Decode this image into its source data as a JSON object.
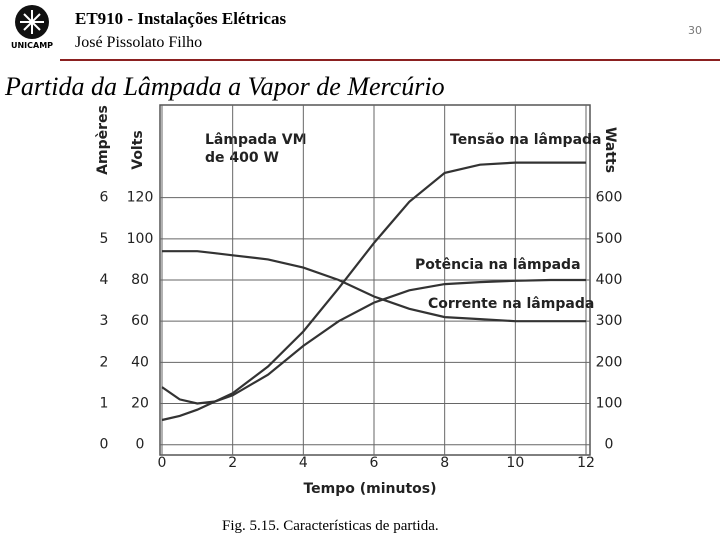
{
  "header": {
    "logo_text": "UNICAMP",
    "course": "ET910 - Instalações Elétricas",
    "author": "José Pissolato Filho",
    "page_number": "30"
  },
  "slide_title": "Partida da Lâmpada a Vapor de Mercúrio",
  "chart_data": {
    "type": "line",
    "annotation": [
      "Lâmpada VM",
      "de 400 W"
    ],
    "caption": "Fig. 5.15.  Características de partida.",
    "x_label": "Tempo (minutos)",
    "y_label": "Volts",
    "y2_label": "Watts",
    "y3_label": "Ampères",
    "xlim": [
      0,
      12
    ],
    "xticks": [
      0,
      2,
      4,
      6,
      8,
      10,
      12
    ],
    "ylim": [
      -5,
      165
    ],
    "yticks": [
      0,
      20,
      40,
      60,
      80,
      100,
      120
    ],
    "y2lim": [
      -25,
      825
    ],
    "y2ticks": [
      0,
      100,
      200,
      300,
      400,
      500,
      600
    ],
    "y3lim": [
      -0.25,
      8.25
    ],
    "y3ticks": [
      0,
      1,
      2,
      3,
      4,
      5,
      6
    ],
    "grid": true,
    "x": [
      0,
      0.5,
      1,
      1.5,
      2,
      3,
      4,
      5,
      6,
      7,
      8,
      9,
      10,
      11,
      12
    ],
    "series": [
      {
        "name": "Tensão na lâmpada",
        "color": "#333333",
        "axis": "y",
        "values": [
          12,
          14,
          17,
          21,
          25,
          38,
          55,
          76,
          98,
          118,
          132,
          136,
          137,
          137,
          137
        ]
      },
      {
        "name": "Potência na lâmpada",
        "color": "#333333",
        "axis": "y2",
        "values": [
          140,
          110,
          100,
          105,
          120,
          170,
          240,
          300,
          345,
          375,
          390,
          395,
          398,
          400,
          400
        ]
      },
      {
        "name": "Corrente na lâmpada",
        "color": "#333333",
        "axis": "y3",
        "values": [
          4.7,
          4.7,
          4.7,
          4.65,
          4.6,
          4.5,
          4.3,
          4.0,
          3.6,
          3.3,
          3.1,
          3.05,
          3.0,
          3.0,
          3.0
        ]
      }
    ]
  }
}
